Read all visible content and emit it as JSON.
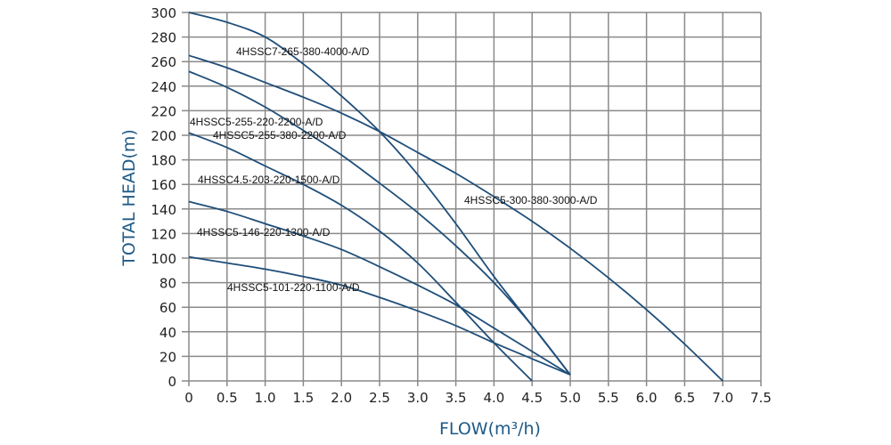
{
  "chart_data": {
    "type": "line",
    "title": "",
    "xlabel": "FLOW(m³/h)",
    "ylabel": "TOTAL HEAD(m)",
    "xlim": [
      0,
      7.5
    ],
    "ylim": [
      0,
      300
    ],
    "xticks": [
      "0",
      "0.5",
      "1.0",
      "1.5",
      "2.0",
      "2.5",
      "3.0",
      "3.5",
      "4.0",
      "4.5",
      "5.0",
      "5.5",
      "6.0",
      "6.5",
      "7.0",
      "7.5"
    ],
    "yticks": [
      "0",
      "20",
      "40",
      "60",
      "80",
      "100",
      "120",
      "140",
      "160",
      "180",
      "200",
      "220",
      "240",
      "260",
      "280",
      "300"
    ],
    "grid": true,
    "line_color": "#1f4e79",
    "series": [
      {
        "name": "4HSSC7-265-380-4000-A/D",
        "x": [
          0,
          0.5,
          1,
          1.5,
          2,
          2.5,
          3,
          3.5,
          4,
          4.5,
          5
        ],
        "y": [
          300,
          292,
          280,
          258,
          232,
          203,
          168,
          128,
          85,
          45,
          5
        ]
      },
      {
        "name": "4HSSC5-300-380-3000-A/D",
        "x": [
          0,
          0.5,
          1,
          1.5,
          2,
          2.5,
          3,
          3.5,
          4,
          4.5,
          5,
          5.5,
          6,
          6.5,
          7
        ],
        "y": [
          265,
          255,
          243,
          231,
          218,
          203,
          186,
          169,
          150,
          130,
          108,
          84,
          58,
          30,
          0
        ]
      },
      {
        "name": "4HSSC5-255-220-2200-A/D / 4HSSC5-255-380-2200-A/D",
        "x": [
          0,
          0.5,
          1,
          1.5,
          2,
          2.5,
          3,
          3.5,
          4,
          4.5,
          5
        ],
        "y": [
          252,
          239,
          223,
          204,
          184,
          161,
          137,
          110,
          80,
          45,
          5
        ]
      },
      {
        "name": "4HSSC4.5-203-220-1500-A/D",
        "x": [
          0,
          0.5,
          1,
          1.5,
          2,
          2.5,
          3,
          3.5,
          4,
          4.5
        ],
        "y": [
          202,
          190,
          175,
          160,
          143,
          122,
          96,
          64,
          31,
          0
        ]
      },
      {
        "name": "4HSSC5-146-220-1300-A/D",
        "x": [
          0,
          0.5,
          1,
          1.5,
          2,
          2.5,
          3,
          3.5,
          4,
          4.5,
          5
        ],
        "y": [
          146,
          138,
          128,
          118,
          107,
          93,
          78,
          62,
          43,
          24,
          5
        ]
      },
      {
        "name": "4HSSC5-101-220-1100-A/D",
        "x": [
          0,
          0.5,
          1,
          1.5,
          2,
          2.5,
          3,
          3.5,
          4,
          4.5,
          5
        ],
        "y": [
          101,
          96,
          91,
          85,
          78,
          68,
          57,
          45,
          31,
          18,
          5
        ]
      }
    ],
    "annotations": [
      "4HSSC7-265-380-4000-A/D",
      "4HSSC5-255-220-2200-A/D",
      "4HSSC5-255-380-2200-A/D",
      "4HSSC4.5-203-220-1500-A/D",
      "4HSSC5-300-380-3000-A/D",
      "4HSSC5-146-220-1300-A/D",
      "4HSSC5-101-220-1100-A/D"
    ]
  }
}
